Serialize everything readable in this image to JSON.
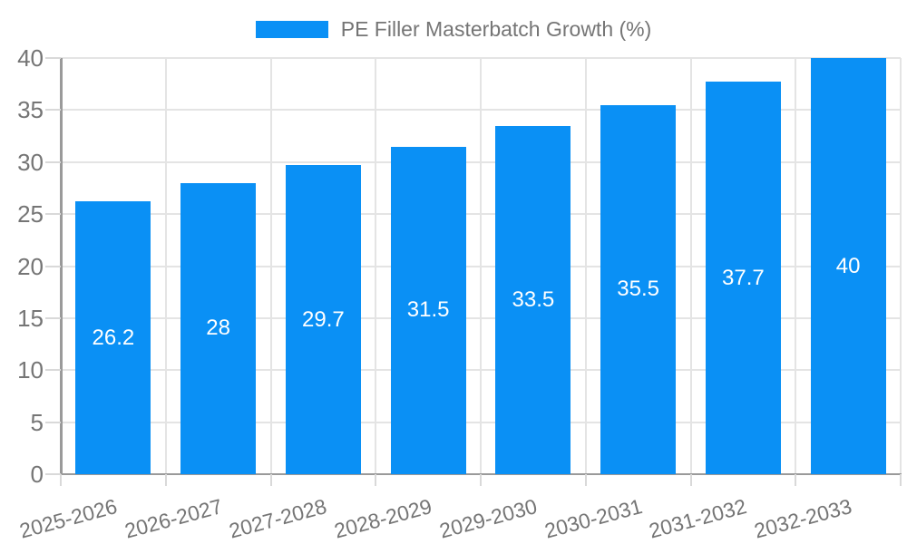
{
  "legend": {
    "label": "PE Filler Masterbatch Growth (%)"
  },
  "chart_data": {
    "type": "bar",
    "title": "PE Filler Masterbatch Growth (%)",
    "categories": [
      "2025-2026",
      "2026-2027",
      "2027-2028",
      "2028-2029",
      "2029-2030",
      "2030-2031",
      "2031-2032",
      "2032-2033"
    ],
    "values": [
      26.2,
      28,
      29.7,
      31.5,
      33.5,
      35.5,
      37.7,
      40
    ],
    "value_labels": [
      "26.2",
      "28",
      "29.7",
      "31.5",
      "33.5",
      "35.5",
      "37.7",
      "40"
    ],
    "xlabel": "",
    "ylabel": "",
    "ylim": [
      0,
      40
    ],
    "y_ticks": [
      0,
      5,
      10,
      15,
      20,
      25,
      30,
      35,
      40
    ],
    "grid": true,
    "legend_position": "top"
  },
  "colors": {
    "bar": "#0a90f5",
    "grid": "#e4e4e4",
    "axis": "#9a9a9a",
    "tick": "#d9d9d9",
    "tick_text": "#757575",
    "value_text": "#ffffff",
    "background": "#ffffff"
  }
}
